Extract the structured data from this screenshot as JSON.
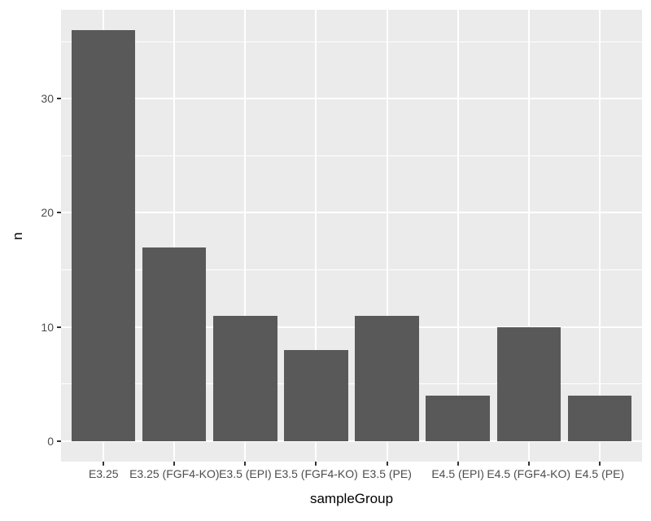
{
  "figure": {
    "background_color": "#FFFFFF",
    "panel_background_color": "#EBEBEB",
    "grid_major_color": "#FFFFFF",
    "grid_minor_color": "#FFFFFF",
    "bar_color": "#595959",
    "axis_text_color": "#4D4D4D",
    "tick_mark_color": "#333333",
    "axis_title_color": "#000000"
  },
  "chart_data": {
    "type": "bar",
    "title": "",
    "xlabel": "sampleGroup",
    "ylabel": "n",
    "categories": [
      "E3.25",
      "E3.25 (FGF4-KO)",
      "E3.5 (EPI)",
      "E3.5 (FGF4-KO)",
      "E3.5 (PE)",
      "E4.5 (EPI)",
      "E4.5 (FGF4-KO)",
      "E4.5 (PE)"
    ],
    "values": [
      36,
      17,
      11,
      8,
      11,
      4,
      10,
      4
    ],
    "y_ticks": [
      0,
      10,
      20,
      30
    ],
    "y_minor_ticks": [
      5,
      15,
      25,
      35
    ],
    "ylim": [
      -1.8,
      37.8
    ],
    "bar_width_fraction": 0.9,
    "grid": true,
    "legend": false,
    "style": "ggplot2-grey"
  }
}
